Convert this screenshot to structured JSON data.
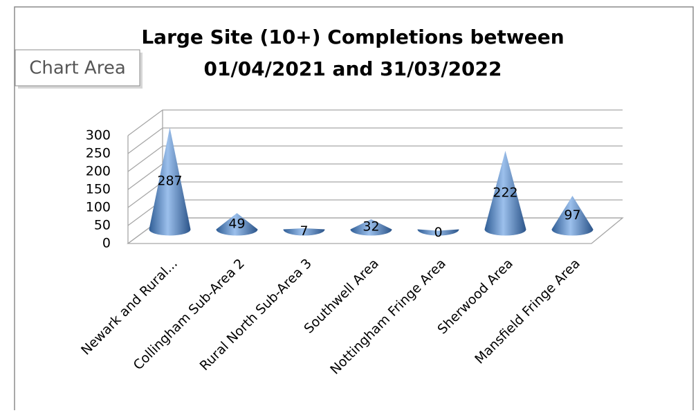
{
  "tooltip": "Chart Area",
  "chart_data": {
    "type": "cone",
    "title": [
      "Large Site (10+) Completions between",
      "01/04/2021 and 31/03/2022"
    ],
    "categories": [
      "Newark and Rural...",
      "Collingham Sub-Area 2",
      "Rural North Sub-Area 3",
      "Southwell Area",
      "Nottingham Fringe Area",
      "Sherwood Area",
      "Mansfield Fringe Area"
    ],
    "values": [
      287,
      49,
      7,
      32,
      0,
      222,
      97
    ],
    "color": "#4f81bd",
    "ylim": [
      0,
      300
    ],
    "yticks": [
      0,
      50,
      100,
      150,
      200,
      250,
      300
    ],
    "grid": true
  }
}
